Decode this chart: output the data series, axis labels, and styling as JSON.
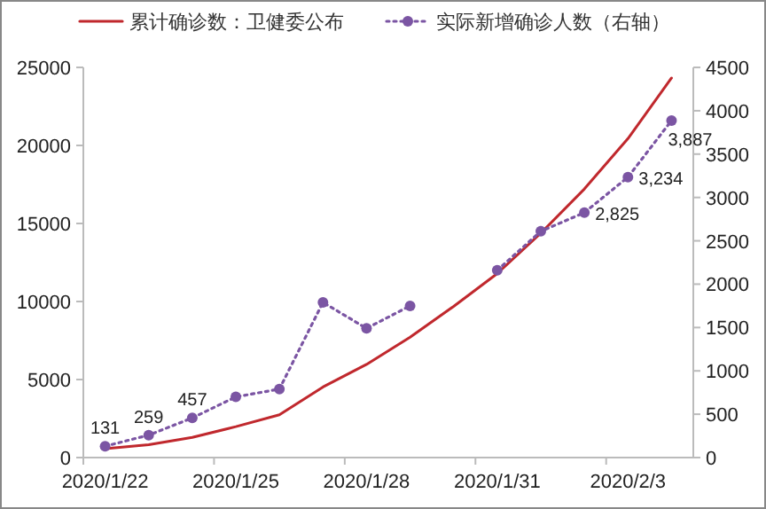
{
  "chart_data": {
    "type": "line",
    "categories": [
      "2020/1/22",
      null,
      null,
      "2020/1/25",
      null,
      null,
      "2020/1/28",
      null,
      null,
      "2020/1/31",
      null,
      null,
      "2020/2/3",
      null
    ],
    "series": [
      {
        "name": "累计确诊数：卫健委公布",
        "color": "#c0282d",
        "line_style": "solid",
        "marker": "none",
        "values": [
          570,
          830,
          1290,
          1980,
          2740,
          4520,
          5970,
          7710,
          9690,
          11790,
          14380,
          17210,
          20440,
          24320
        ]
      },
      {
        "name": "实际新增确诊人数（右轴）",
        "color": "#7b55a3",
        "axis": "y2",
        "line_style": "dotted",
        "marker": "circle",
        "values": [
          131,
          259,
          457,
          700,
          790,
          1790,
          1490,
          1750,
          null,
          2160,
          2610,
          2825,
          3234,
          3887
        ],
        "value_labels": [
          "131",
          "259",
          "457",
          null,
          null,
          null,
          null,
          null,
          null,
          null,
          null,
          "2,825",
          "3,234",
          "3,887"
        ]
      }
    ],
    "ylim": [
      0,
      25000
    ],
    "yticks": [
      0,
      5000,
      10000,
      15000,
      20000,
      25000
    ],
    "y2lim": [
      0,
      4500
    ],
    "y2ticks": [
      0,
      500,
      1000,
      1500,
      2000,
      2500,
      3000,
      3500,
      4000,
      4500
    ],
    "legend": "top",
    "grid": false
  }
}
